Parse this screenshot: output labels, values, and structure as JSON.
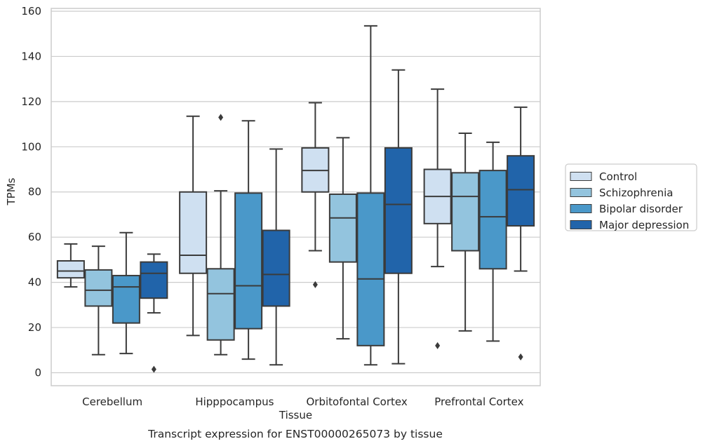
{
  "chart_data": {
    "type": "box",
    "caption": "Transcript expression for ENST00000265073 by tissue",
    "xlabel": "Tissue",
    "ylabel": "TPMs",
    "ylim": [
      -6,
      161
    ],
    "yticks": [
      0,
      20,
      40,
      60,
      80,
      100,
      120,
      140,
      160
    ],
    "grid": "horizontal",
    "legend_position": "right",
    "categories": [
      "Cerebellum",
      "Hipppocampus",
      "Orbitofontal Cortex",
      "Prefrontal Cortex"
    ],
    "series": [
      {
        "name": "Control",
        "color": "#cfe0f1",
        "boxes": [
          {
            "whislo": 38,
            "q1": 42,
            "median": 45,
            "q3": 49.5,
            "whishi": 57,
            "fliers": []
          },
          {
            "whislo": 16.5,
            "q1": 44,
            "median": 52,
            "q3": 80,
            "whishi": 113.5,
            "fliers": []
          },
          {
            "whislo": 54,
            "q1": 80,
            "median": 89.5,
            "q3": 99.5,
            "whishi": 119.5,
            "fliers": [
              39
            ]
          },
          {
            "whislo": 47,
            "q1": 66,
            "median": 78,
            "q3": 90,
            "whishi": 125.5,
            "fliers": [
              12
            ]
          }
        ]
      },
      {
        "name": "Schizophrenia",
        "color": "#93c4de",
        "boxes": [
          {
            "whislo": 8,
            "q1": 29.5,
            "median": 36.5,
            "q3": 45.5,
            "whishi": 56,
            "fliers": []
          },
          {
            "whislo": 8,
            "q1": 14.5,
            "median": 35,
            "q3": 46,
            "whishi": 80.5,
            "fliers": [
              113
            ]
          },
          {
            "whislo": 15,
            "q1": 49,
            "median": 68.5,
            "q3": 79,
            "whishi": 104,
            "fliers": []
          },
          {
            "whislo": 18.5,
            "q1": 54,
            "median": 78,
            "q3": 88.5,
            "whishi": 106,
            "fliers": []
          }
        ]
      },
      {
        "name": "Bipolar disorder",
        "color": "#4a98c9",
        "boxes": [
          {
            "whislo": 8.5,
            "q1": 22,
            "median": 38,
            "q3": 43,
            "whishi": 62,
            "fliers": []
          },
          {
            "whislo": 6,
            "q1": 19.5,
            "median": 38.5,
            "q3": 79.5,
            "whishi": 111.5,
            "fliers": []
          },
          {
            "whislo": 3.5,
            "q1": 12,
            "median": 41.5,
            "q3": 79.5,
            "whishi": 153.5,
            "fliers": []
          },
          {
            "whislo": 14,
            "q1": 46,
            "median": 69,
            "q3": 89.5,
            "whishi": 102,
            "fliers": []
          }
        ]
      },
      {
        "name": "Major depression",
        "color": "#2164aa",
        "boxes": [
          {
            "whislo": 26.5,
            "q1": 33,
            "median": 44,
            "q3": 49,
            "whishi": 52.5,
            "fliers": [
              1.5
            ]
          },
          {
            "whislo": 3.5,
            "q1": 29.5,
            "median": 43.5,
            "q3": 63,
            "whishi": 99,
            "fliers": []
          },
          {
            "whislo": 4,
            "q1": 44,
            "median": 74.5,
            "q3": 99.5,
            "whishi": 134,
            "fliers": []
          },
          {
            "whislo": 45,
            "q1": 65,
            "median": 81,
            "q3": 96,
            "whishi": 117.5,
            "fliers": [
              7
            ]
          }
        ]
      }
    ]
  }
}
